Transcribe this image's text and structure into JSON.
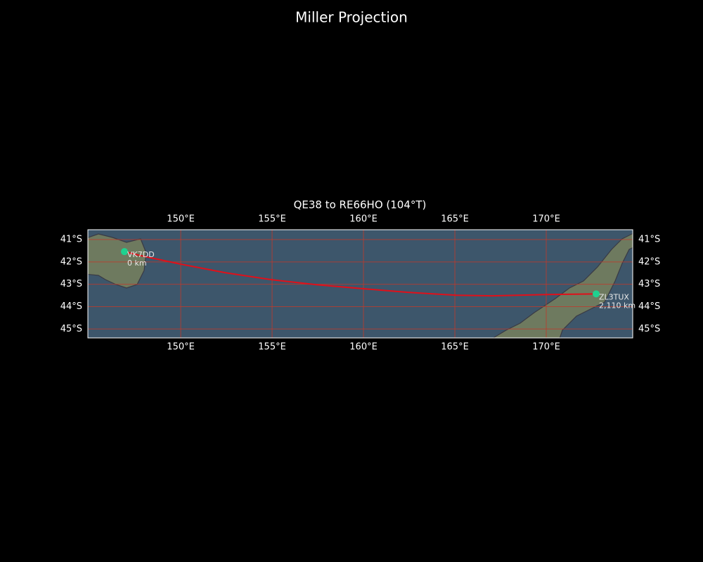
{
  "chart_data": {
    "type": "map",
    "title": "Miller Projection",
    "subtitle": "QE38 to RE66HO (104°T)",
    "xlim": [
      144.92,
      174.73
    ],
    "ylim": [
      -45.4,
      -40.56
    ],
    "xticks": [
      {
        "value": 150,
        "label": "150°E"
      },
      {
        "value": 155,
        "label": "155°E"
      },
      {
        "value": 160,
        "label": "160°E"
      },
      {
        "value": 165,
        "label": "165°E"
      },
      {
        "value": 170,
        "label": "170°E"
      }
    ],
    "yticks": [
      {
        "value": -41,
        "label": "41°S"
      },
      {
        "value": -42,
        "label": "42°S"
      },
      {
        "value": -43,
        "label": "43°S"
      },
      {
        "value": -44,
        "label": "44°S"
      },
      {
        "value": -45,
        "label": "45°S"
      }
    ],
    "grid": true,
    "grid_color": "#c0392b",
    "path": {
      "color": "#e0101a",
      "x": [
        146.92,
        147.81,
        150,
        152.42,
        155,
        157.42,
        160,
        162.42,
        165.08,
        167.04,
        170.08,
        172.73
      ],
      "y": [
        -41.54,
        -41.72,
        -42.1,
        -42.48,
        -42.8,
        -43.02,
        -43.2,
        -43.36,
        -43.49,
        -43.52,
        -43.46,
        -43.43
      ]
    },
    "marker_color": "#1fd18f",
    "points": [
      {
        "name": "VK7DD",
        "x": 146.92,
        "y": -41.54
      },
      {
        "name": "ZL3TUX",
        "x": 172.73,
        "y": -43.43
      }
    ],
    "distances": [
      0,
      2110
    ],
    "distance_labels": [
      "0 km",
      "2,110 km"
    ]
  }
}
